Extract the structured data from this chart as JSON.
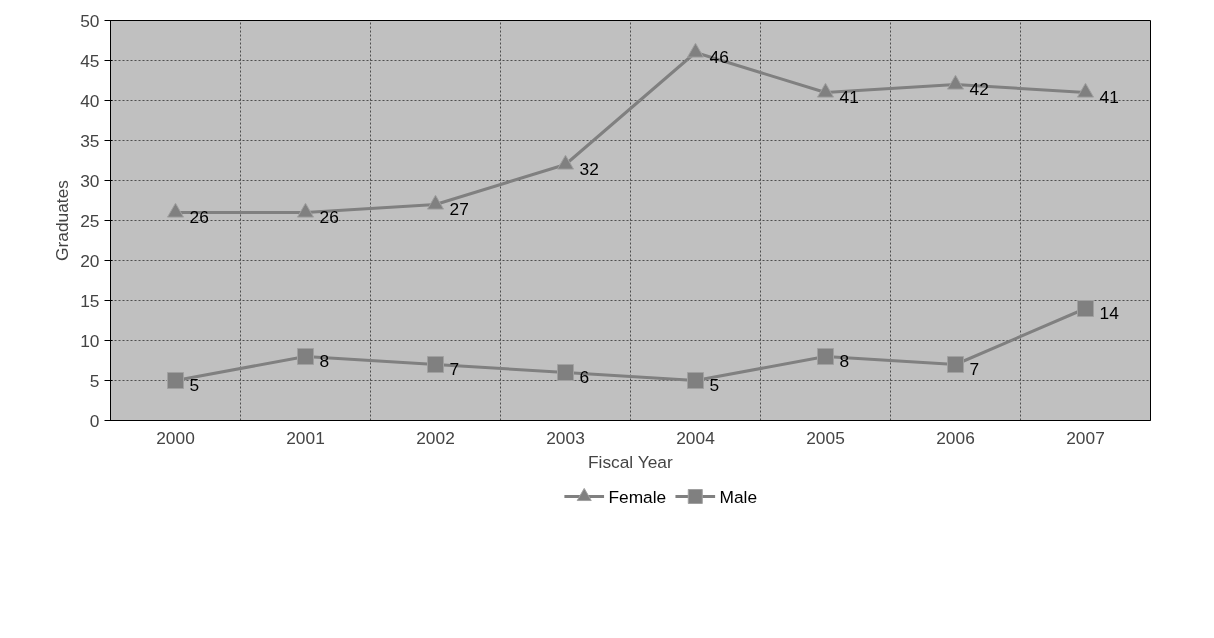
{
  "chart_data": {
    "type": "line",
    "xlabel": "Fiscal Year",
    "ylabel": "Graduates",
    "categories": [
      "2000",
      "2001",
      "2002",
      "2003",
      "2004",
      "2005",
      "2006",
      "2007"
    ],
    "series": [
      {
        "name": "Female",
        "color": "#808080",
        "marker": "triangle",
        "values": [
          26,
          26,
          27,
          32,
          46,
          41,
          42,
          41
        ]
      },
      {
        "name": "Male",
        "color": "#808080",
        "marker": "square",
        "values": [
          5,
          8,
          7,
          6,
          5,
          8,
          7,
          14
        ]
      }
    ],
    "ylim": [
      0,
      50
    ],
    "yticks": [
      0,
      5,
      10,
      15,
      20,
      25,
      30,
      35,
      40,
      45,
      50
    ],
    "grid": true,
    "legend": "bottom",
    "data_labels": true,
    "line_style": "solid"
  }
}
